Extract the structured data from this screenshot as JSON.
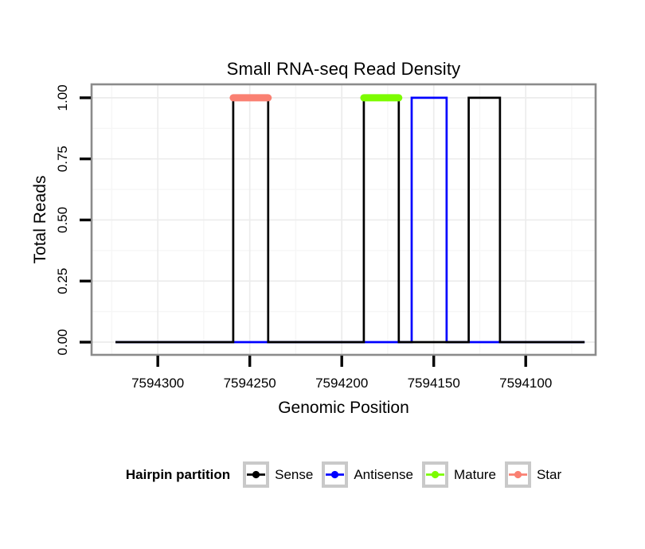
{
  "chart_data": {
    "type": "line",
    "title": "Small RNA-seq Read Density",
    "xlabel": "Genomic Position",
    "ylabel": "Total Reads",
    "grid": true,
    "x_axis": {
      "reversed": true,
      "left": 7594336,
      "right": 7594062,
      "ticks": [
        {
          "value": 7594300,
          "label": "7594300"
        },
        {
          "value": 7594250,
          "label": "7594250"
        },
        {
          "value": 7594200,
          "label": "7594200"
        },
        {
          "value": 7594150,
          "label": "7594150"
        },
        {
          "value": 7594100,
          "label": "7594100"
        }
      ],
      "minor_ticks": [
        7594325,
        7594275,
        7594225,
        7594175,
        7594125,
        7594075
      ]
    },
    "y_axis": {
      "bottom": -0.052,
      "top": 1.055,
      "ticks": [
        {
          "value": 0,
          "label": "0.00"
        },
        {
          "value": 0.25,
          "label": "0.25"
        },
        {
          "value": 0.5,
          "label": "0.50"
        },
        {
          "value": 0.75,
          "label": "0.75"
        },
        {
          "value": 1,
          "label": "1.00"
        }
      ],
      "minor_ticks": [
        0.125,
        0.375,
        0.625,
        0.875
      ]
    },
    "series": [
      {
        "name": "Sense",
        "color": "#000000",
        "baseline_value": 0,
        "extent": [
          7594323,
          7594068
        ],
        "pulses_at_1": [
          [
            7594259,
            7594240
          ],
          [
            7594188,
            7594169
          ],
          [
            7594131,
            7594114
          ]
        ]
      },
      {
        "name": "Antisense",
        "color": "#0000FF",
        "baseline_value": 0,
        "extent": [
          7594323,
          7594068
        ],
        "pulses_at_1": [
          [
            7594162,
            7594143
          ]
        ]
      }
    ],
    "annotations": [
      {
        "name": "Mature",
        "color": "#7CFC00",
        "value": 1,
        "from": 7594188,
        "to": 7594169
      },
      {
        "name": "Star",
        "color": "#FA8072",
        "value": 1,
        "from": 7594259,
        "to": 7594240
      }
    ],
    "legend": {
      "title": "Hairpin partition",
      "position": "bottom",
      "entries": [
        {
          "label": "Sense",
          "color": "#000000"
        },
        {
          "label": "Antisense",
          "color": "#0000FF"
        },
        {
          "label": "Mature",
          "color": "#7CFC00"
        },
        {
          "label": "Star",
          "color": "#FA8072"
        }
      ]
    },
    "style": {
      "panel_border": "#8B8B8B",
      "grid_major": "#ECECEC",
      "grid_minor": "#F6F6F6",
      "legend_key_border": "#C9C9C9",
      "tick_color": "#000000"
    }
  }
}
